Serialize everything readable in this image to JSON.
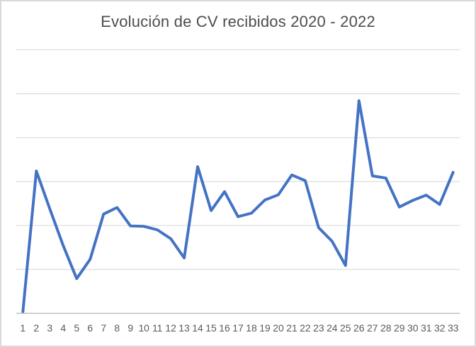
{
  "chart_data": {
    "type": "line",
    "title": "Evolución de CV recibidos 2020 - 2022",
    "xlabel": "",
    "ylabel": "",
    "legend": "none",
    "grid": "horizontal",
    "ylim": [
      0,
      60
    ],
    "y_gridline_step": 10,
    "y_axis_labels_visible": false,
    "categories": [
      "1",
      "2",
      "3",
      "4",
      "5",
      "6",
      "7",
      "8",
      "9",
      "10",
      "11",
      "12",
      "13",
      "14",
      "15",
      "16",
      "17",
      "18",
      "19",
      "20",
      "21",
      "22",
      "23",
      "24",
      "25",
      "26",
      "27",
      "28",
      "29",
      "30",
      "31",
      "32",
      "33"
    ],
    "series": [
      {
        "name": "CV recibidos",
        "color": "#4472C4",
        "values": [
          0.4,
          32.4,
          23.8,
          15.4,
          7.9,
          12.3,
          22.6,
          24.1,
          19.9,
          19.8,
          19.0,
          17.0,
          12.6,
          33.4,
          23.4,
          27.7,
          22.0,
          22.8,
          25.8,
          27.0,
          31.5,
          30.2,
          19.5,
          16.4,
          10.9,
          48.4,
          31.3,
          30.8,
          24.2,
          25.7,
          26.9,
          24.8,
          32.1
        ]
      }
    ]
  },
  "colors": {
    "chart_border": "#D9D9D9",
    "gridline": "#DCDCDC",
    "axis_line": "#BFBFBF",
    "title_text": "#4d4d4d",
    "tick_text": "#595959",
    "series_line": "#4472C4",
    "background": "#FFFFFF"
  }
}
